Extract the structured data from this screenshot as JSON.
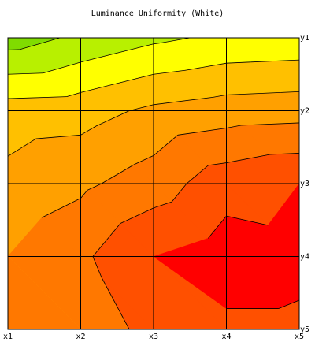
{
  "chart_data": {
    "type": "contour",
    "title": "Luminance Uniformity (White)",
    "x": [
      "x1",
      "x2",
      "x3",
      "x4",
      "x5"
    ],
    "y": [
      "y1",
      "y2",
      "y3",
      "y4",
      "y5"
    ],
    "values": [
      [
        0.5,
        1.2,
        1.8,
        2.2,
        2.3
      ],
      [
        3.5,
        3.6,
        4.2,
        4.5,
        4.6
      ],
      [
        4.3,
        4.8,
        5.5,
        6.6,
        7.0
      ],
      [
        5.0,
        5.8,
        7.0,
        7.5,
        7.3
      ],
      [
        5.5,
        5.0,
        6.5,
        6.8,
        6.8
      ]
    ],
    "levels": [
      1,
      2,
      3,
      4,
      5,
      6,
      7
    ],
    "colors": [
      "#80dc00",
      "#b8f000",
      "#ffff00",
      "#ffc000",
      "#ffa000",
      "#ff7800",
      "#ff5000",
      "#ff0000"
    ],
    "grid": true
  }
}
